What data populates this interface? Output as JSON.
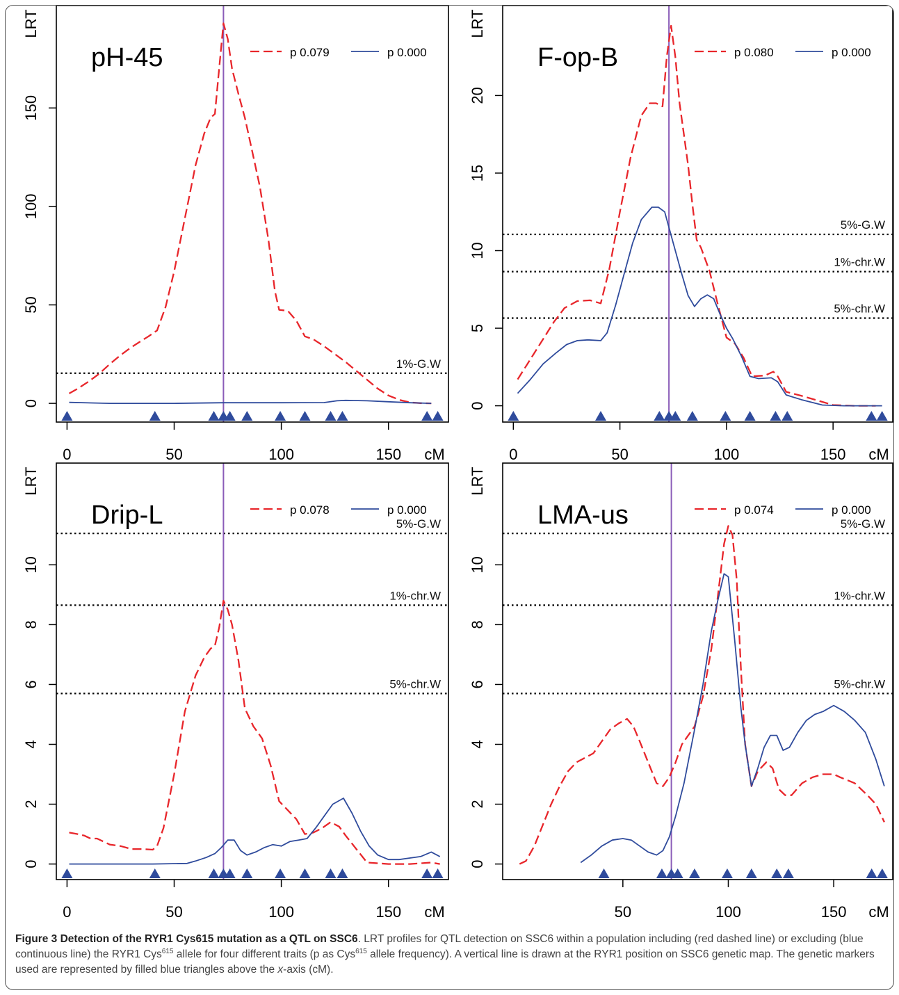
{
  "figure": {
    "caption": {
      "label": "Figure 3",
      "title": "Detection of the RYR1 Cys615 mutation as a QTL on SSC6",
      "text_a": ". LRT profiles for QTL detection on SSC6 within a population including (red dashed line) or excluding (blue continuous line) the RYR1 Cys",
      "sup1": "615",
      "text_b": " allele for four different traits (p as Cys",
      "sup2": "615",
      "text_c": " allele frequency). A vertical line is drawn at the RYR1 position on SSC6 genetic map. The genetic markers used are represented by filled blue triangles above the ",
      "italic": "x",
      "text_d": "-axis (cM)."
    }
  },
  "colors": {
    "with_allele": "#e8262b",
    "without_allele": "#2f4b9c",
    "ryr1_line": "#8a5cb8",
    "threshold": "#000000",
    "marker": "#2f4b9c"
  },
  "chart_data": [
    {
      "type": "line",
      "title": "pH-45",
      "ylabel": "LRT",
      "xlabel": "cM",
      "xlim": [
        -5,
        178
      ],
      "ylim": [
        -9.5,
        202
      ],
      "xticks": [
        0,
        50,
        100,
        150
      ],
      "yticks": [
        0,
        50,
        100,
        150
      ],
      "ryr1_position": 73,
      "markers": [
        0,
        41,
        68.5,
        73,
        76,
        84,
        99.5,
        111,
        123,
        128.5,
        168,
        173
      ],
      "thresholds": [
        {
          "label": "1%-G.W",
          "y": 15.3
        }
      ],
      "series": [
        {
          "name": "p 0.079",
          "style": "dashed",
          "x": [
            1,
            5,
            10,
            15,
            20,
            25,
            30,
            35,
            38,
            42,
            46,
            50,
            55,
            60,
            64,
            67,
            69,
            71,
            73,
            75,
            77,
            80,
            83,
            86,
            90,
            94,
            97,
            99,
            103,
            107,
            111,
            115,
            120,
            125,
            130,
            135,
            140,
            145,
            150,
            155,
            160,
            165,
            170
          ],
          "y": [
            5,
            7.5,
            11,
            15,
            20,
            24.5,
            28.5,
            32,
            34,
            37,
            49,
            67,
            94,
            121,
            137,
            145,
            147,
            170,
            193,
            185,
            170,
            157,
            145,
            130,
            110,
            83,
            57,
            47.5,
            47,
            42,
            34,
            32.5,
            29,
            25,
            21,
            16.5,
            12,
            7.5,
            4,
            1.8,
            0.5,
            0.1,
            0
          ]
        },
        {
          "name": "p 0.000",
          "style": "solid",
          "x": [
            1,
            20,
            50,
            73,
            100,
            120,
            126,
            130,
            140,
            150,
            160,
            170
          ],
          "y": [
            0.5,
            0,
            0,
            0.3,
            0.3,
            0.4,
            1.3,
            1.5,
            1.3,
            0.8,
            0.3,
            0
          ]
        }
      ]
    },
    {
      "type": "line",
      "title": "F-op-B",
      "ylabel": "LRT",
      "xlabel": "cM",
      "xlim": [
        -5,
        178
      ],
      "ylim": [
        -1.05,
        25.8
      ],
      "xticks": [
        0,
        50,
        100,
        150
      ],
      "yticks": [
        0,
        5,
        10,
        15,
        20
      ],
      "ryr1_position": 73,
      "markers": [
        0,
        41,
        68.5,
        73,
        76,
        84,
        99.5,
        111,
        123,
        128.5,
        168,
        173
      ],
      "thresholds": [
        {
          "label": "5%-G.W",
          "y": 11.05
        },
        {
          "label": "1%-chr.W",
          "y": 8.65
        },
        {
          "label": "5%-chr.W",
          "y": 5.65
        }
      ],
      "series": [
        {
          "name": "p 0.080",
          "style": "dashed",
          "x": [
            2,
            8,
            14,
            19,
            24,
            30,
            36,
            41,
            45,
            50,
            55,
            60,
            64,
            67,
            70,
            72,
            74,
            76,
            78,
            80,
            82,
            84,
            86,
            88,
            92,
            96,
            100,
            104,
            108,
            112,
            118,
            122,
            124,
            128,
            135,
            140,
            145,
            150,
            160,
            170
          ],
          "y": [
            1.7,
            3,
            4.3,
            5.4,
            6.3,
            6.75,
            6.8,
            6.6,
            8.8,
            12.5,
            16,
            18.7,
            19.5,
            19.5,
            19.3,
            22.5,
            24.5,
            22.5,
            19.5,
            17.5,
            15.5,
            13,
            10.7,
            10.2,
            8.7,
            6.5,
            4.4,
            4,
            3.1,
            1.9,
            1.95,
            2.2,
            1.9,
            0.9,
            0.65,
            0.45,
            0.25,
            0.05,
            0,
            0
          ]
        },
        {
          "name": "p 0.000",
          "style": "solid",
          "x": [
            2,
            8,
            14,
            20,
            25,
            30,
            35,
            41,
            44,
            48,
            52,
            56,
            60,
            65,
            68,
            71,
            73,
            76,
            79,
            82,
            85,
            88,
            91,
            94,
            97,
            100,
            103,
            107,
            111,
            115,
            121,
            124,
            128,
            135,
            145,
            155,
            165,
            173
          ],
          "y": [
            0.8,
            1.7,
            2.7,
            3.4,
            3.95,
            4.2,
            4.25,
            4.2,
            4.7,
            6.5,
            8.5,
            10.5,
            12,
            12.8,
            12.8,
            12.5,
            11.5,
            10,
            8.5,
            7.1,
            6.4,
            6.9,
            7.15,
            6.9,
            5.9,
            5,
            4.3,
            3.2,
            1.9,
            1.75,
            1.8,
            1.55,
            0.7,
            0.4,
            0.05,
            0,
            0,
            0
          ]
        }
      ]
    },
    {
      "type": "line",
      "title": "Drip-L",
      "ylabel": "LRT",
      "xlabel": "cM",
      "xlim": [
        -5,
        178
      ],
      "ylim": [
        -0.52,
        13.4
      ],
      "xticks": [
        0,
        50,
        100,
        150
      ],
      "yticks": [
        0,
        2,
        4,
        6,
        8,
        10
      ],
      "ryr1_position": 73,
      "markers": [
        0,
        41,
        68.5,
        73,
        76,
        84,
        99.5,
        111,
        123,
        128.5,
        168,
        173
      ],
      "thresholds": [
        {
          "label": "5%-G.W",
          "y": 11.05
        },
        {
          "label": "1%-chr.W",
          "y": 8.65
        },
        {
          "label": "5%-chr.W",
          "y": 5.7
        }
      ],
      "series": [
        {
          "name": "p 0.078",
          "style": "dashed",
          "x": [
            1,
            5,
            8,
            11,
            14,
            17,
            20,
            25,
            30,
            35,
            40,
            42,
            45,
            50,
            55,
            60,
            64,
            67,
            69,
            71,
            73,
            75,
            77,
            80,
            83,
            87,
            91,
            95,
            99,
            103,
            107,
            111,
            115,
            119,
            123,
            127,
            130,
            135,
            140,
            150,
            160,
            170,
            174
          ],
          "y": [
            1.05,
            1.0,
            0.95,
            0.85,
            0.85,
            0.75,
            0.65,
            0.6,
            0.5,
            0.5,
            0.48,
            0.6,
            1.2,
            3,
            5.1,
            6.3,
            6.9,
            7.2,
            7.3,
            7.9,
            8.8,
            8.5,
            8,
            6.8,
            5.2,
            4.6,
            4.2,
            3.3,
            2.1,
            1.8,
            1.5,
            1.0,
            1.05,
            1.2,
            1.4,
            1.25,
            0.95,
            0.5,
            0.05,
            0,
            0,
            0.05,
            0
          ]
        },
        {
          "name": "p 0.000",
          "style": "solid",
          "x": [
            1,
            20,
            40,
            56,
            60,
            65,
            69,
            72,
            75,
            78,
            81,
            84,
            88,
            92,
            96,
            100,
            104,
            108,
            112,
            116,
            120,
            124,
            129,
            133,
            137,
            141,
            145,
            150,
            155,
            160,
            165,
            170,
            174
          ],
          "y": [
            0,
            0,
            0,
            0.02,
            0.1,
            0.22,
            0.35,
            0.55,
            0.8,
            0.8,
            0.45,
            0.3,
            0.4,
            0.55,
            0.65,
            0.6,
            0.75,
            0.8,
            0.85,
            1.2,
            1.6,
            2.0,
            2.2,
            1.7,
            1.1,
            0.6,
            0.3,
            0.15,
            0.15,
            0.2,
            0.25,
            0.4,
            0.25
          ]
        }
      ]
    },
    {
      "type": "line",
      "title": "LMA-us",
      "ylabel": "LRT",
      "xlabel": "cM",
      "xlim": [
        -7,
        178
      ],
      "ylim": [
        -0.52,
        13.4
      ],
      "xticks": [
        50,
        100,
        150
      ],
      "yticks": [
        0,
        2,
        4,
        6,
        8,
        10
      ],
      "ryr1_position": 73,
      "markers": [
        41,
        68.5,
        73,
        76,
        84,
        99.5,
        111,
        123,
        128.5,
        168,
        173
      ],
      "thresholds": [
        {
          "label": "5%-G.W",
          "y": 11.05
        },
        {
          "label": "1%-chr.W",
          "y": 8.65
        },
        {
          "label": "5%-chr.W",
          "y": 5.7
        }
      ],
      "series": [
        {
          "name": "p 0.074",
          "style": "dashed",
          "x": [
            1,
            4,
            8,
            12,
            16,
            20,
            24,
            28,
            32,
            36,
            40,
            44,
            48,
            52,
            55,
            58,
            62,
            66,
            69,
            72,
            75,
            78,
            81,
            84,
            88,
            92,
            96,
            98,
            100,
            102,
            104,
            106,
            108,
            111,
            114,
            118,
            121,
            124,
            127,
            130,
            135,
            140,
            145,
            150,
            153,
            160,
            166,
            170,
            174
          ],
          "y": [
            0,
            0.1,
            0.6,
            1.3,
            2,
            2.6,
            3.1,
            3.4,
            3.55,
            3.7,
            4.1,
            4.5,
            4.7,
            4.85,
            4.6,
            4.1,
            3.4,
            2.7,
            2.6,
            2.9,
            3.4,
            4,
            4.3,
            4.6,
            5.6,
            7.2,
            9.5,
            10.7,
            11.3,
            11.0,
            9.5,
            6.5,
            4.0,
            2.6,
            3.1,
            3.4,
            3.2,
            2.5,
            2.3,
            2.3,
            2.7,
            2.9,
            3.0,
            3.0,
            2.9,
            2.7,
            2.3,
            2.0,
            1.4
          ]
        },
        {
          "name": "p 0.000",
          "style": "solid",
          "x": [
            30,
            35,
            40,
            45,
            50,
            54,
            58,
            62,
            66,
            69,
            72,
            75,
            79,
            84,
            88,
            92,
            95,
            98,
            100,
            103,
            106,
            108,
            111,
            114,
            117,
            120,
            123,
            126,
            129,
            133,
            137,
            141,
            145,
            150,
            155,
            160,
            165,
            170,
            174
          ],
          "y": [
            0.05,
            0.3,
            0.6,
            0.8,
            0.85,
            0.8,
            0.6,
            0.4,
            0.3,
            0.45,
            0.9,
            1.6,
            2.7,
            4.5,
            6,
            7.8,
            8.8,
            9.7,
            9.6,
            7.5,
            5.2,
            4.0,
            2.6,
            3.2,
            3.9,
            4.3,
            4.3,
            3.8,
            3.9,
            4.4,
            4.8,
            5.0,
            5.1,
            5.3,
            5.1,
            4.8,
            4.4,
            3.5,
            2.6
          ]
        }
      ]
    }
  ]
}
